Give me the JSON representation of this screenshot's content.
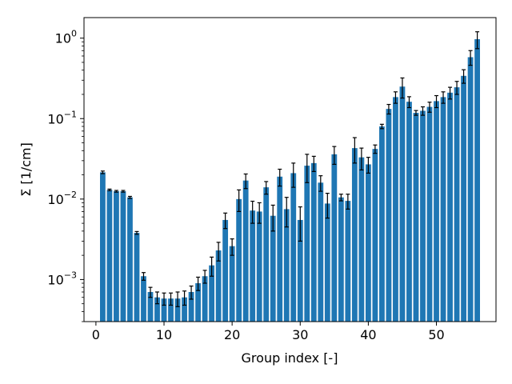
{
  "chart_data": {
    "type": "bar",
    "title": "",
    "xlabel": "Group index [-]",
    "ylabel": "Σ [1/cm]",
    "yscale": "log",
    "xlim": [
      -1.75,
      58.75
    ],
    "ylim": [
      0.0003,
      1.8
    ],
    "grid": false,
    "legend": "none",
    "bar_color": "#1f77b4",
    "errorbar_color": "#000000",
    "x_ticks": [
      {
        "value": 0,
        "label": "0"
      },
      {
        "value": 10,
        "label": "10"
      },
      {
        "value": 20,
        "label": "20"
      },
      {
        "value": 30,
        "label": "30"
      },
      {
        "value": 40,
        "label": "40"
      },
      {
        "value": 50,
        "label": "50"
      }
    ],
    "y_ticks": [
      {
        "value": 0.001,
        "base": "10",
        "exp": "−3"
      },
      {
        "value": 0.01,
        "base": "10",
        "exp": "−2"
      },
      {
        "value": 0.1,
        "base": "10",
        "exp": "−1"
      },
      {
        "value": 1,
        "base": "10",
        "exp": "0"
      }
    ],
    "categories": [
      1,
      2,
      3,
      4,
      5,
      6,
      7,
      8,
      9,
      10,
      11,
      12,
      13,
      14,
      15,
      16,
      17,
      18,
      19,
      20,
      21,
      22,
      23,
      24,
      25,
      26,
      27,
      28,
      29,
      30,
      31,
      32,
      33,
      34,
      35,
      36,
      37,
      38,
      39,
      40,
      41,
      42,
      43,
      44,
      45,
      46,
      47,
      48,
      49,
      50,
      51,
      52,
      53,
      54,
      55,
      56
    ],
    "values": [
      0.0215,
      0.013,
      0.0125,
      0.0125,
      0.0105,
      0.0038,
      0.0011,
      0.0007,
      0.0006,
      0.00058,
      0.00058,
      0.00058,
      0.0006,
      0.0007,
      0.0009,
      0.0011,
      0.0015,
      0.0023,
      0.0055,
      0.0026,
      0.01,
      0.017,
      0.0072,
      0.007,
      0.014,
      0.0062,
      0.019,
      0.0075,
      0.021,
      0.0055,
      0.026,
      0.028,
      0.016,
      0.0088,
      0.036,
      0.0105,
      0.0095,
      0.043,
      0.033,
      0.027,
      0.042,
      0.08,
      0.132,
      0.185,
      0.25,
      0.162,
      0.118,
      0.125,
      0.14,
      0.165,
      0.185,
      0.21,
      0.245,
      0.34,
      0.58,
      0.97
    ],
    "errors": [
      0.0008,
      0.0003,
      0.0003,
      0.0003,
      0.0003,
      0.00015,
      0.00012,
      0.0001,
      0.0001,
      0.0001,
      0.0001,
      0.00012,
      0.00012,
      0.00013,
      0.00017,
      0.0002,
      0.0004,
      0.0006,
      0.0012,
      0.0006,
      0.003,
      0.0035,
      0.0022,
      0.002,
      0.0025,
      0.0022,
      0.0045,
      0.003,
      0.007,
      0.0025,
      0.01,
      0.006,
      0.0035,
      0.003,
      0.009,
      0.001,
      0.002,
      0.015,
      0.01,
      0.006,
      0.005,
      0.005,
      0.018,
      0.03,
      0.07,
      0.025,
      0.008,
      0.015,
      0.02,
      0.028,
      0.03,
      0.035,
      0.045,
      0.065,
      0.12,
      0.23
    ]
  }
}
